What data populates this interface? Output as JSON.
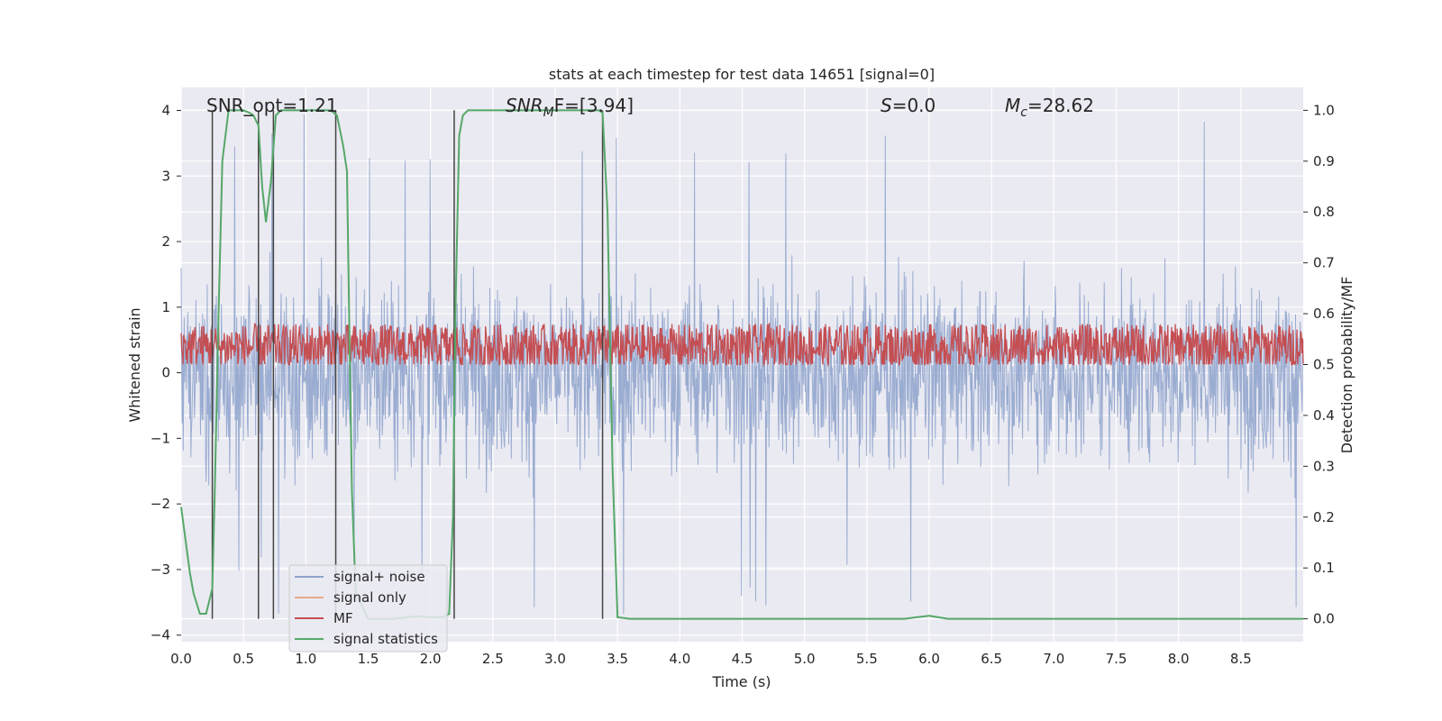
{
  "chart_data": {
    "type": "line",
    "title": "stats at each timestep for test data 14651 [signal=0]",
    "xlabel": "Time (s)",
    "ylabel_left": "Whitened strain",
    "ylabel_right": "Detection probability/MF",
    "xlim": [
      0.0,
      9.0
    ],
    "ylim_left": [
      -4.1,
      4.35
    ],
    "ylim_right": [
      -0.045,
      1.045
    ],
    "x_ticks": [
      0.0,
      0.5,
      1.0,
      1.5,
      2.0,
      2.5,
      3.0,
      3.5,
      4.0,
      4.5,
      5.0,
      5.5,
      6.0,
      6.5,
      7.0,
      7.5,
      8.0,
      8.5
    ],
    "x_tick_labels": [
      "0.0",
      "0.5",
      "1.0",
      "1.5",
      "2.0",
      "2.5",
      "3.0",
      "3.5",
      "4.0",
      "4.5",
      "5.0",
      "5.5",
      "6.0",
      "6.5",
      "7.0",
      "7.5",
      "8.0",
      "8.5"
    ],
    "y_left_ticks": [
      4,
      3,
      2,
      1,
      0,
      -1,
      -2,
      -3,
      -4
    ],
    "y_left_tick_labels": [
      "4",
      "3",
      "2",
      "1",
      "0",
      "−1",
      "−2",
      "−3",
      "−4"
    ],
    "y_right_ticks": [
      1.0,
      0.9,
      0.8,
      0.7,
      0.6,
      0.5,
      0.4,
      0.3,
      0.2,
      0.1,
      0.0
    ],
    "y_right_tick_labels": [
      "1.0",
      "0.9",
      "0.8",
      "0.7",
      "0.6",
      "0.5",
      "0.4",
      "0.3",
      "0.2",
      "0.1",
      "0.0"
    ],
    "annotations": {
      "snr_opt": "SNR_opt=1.21",
      "snr_mf_prefix": "SNR",
      "snr_mf_sub": "M",
      "snr_mf_suffix": "F=[3.94]",
      "s_prefix": "S",
      "s_suffix": "=0.0",
      "mc_prefix": "M",
      "mc_sub": "c",
      "mc_suffix": "=28.62"
    },
    "legend": {
      "placement": "lower-left",
      "entries": [
        {
          "label": "signal+ noise",
          "color": "#8fa3cc"
        },
        {
          "label": "signal only",
          "color": "#e8a88a"
        },
        {
          "label": "MF",
          "color": "#c44e52"
        },
        {
          "label": "signal statistics",
          "color": "#55a868"
        }
      ]
    },
    "series": [
      {
        "name": "signal+ noise",
        "color": "#96a9cf",
        "axis": "left",
        "description": "whitened strain noise band, 0.0-9.0 s",
        "envelope_upper": 2.2,
        "envelope_lower": -2.2,
        "peak_upper": 4.0,
        "peak_lower": -3.7
      },
      {
        "name": "MF",
        "color": "#c44e52",
        "axis": "right",
        "center": 0.535,
        "min": 0.5,
        "max": 0.6
      },
      {
        "name": "signal statistics",
        "color": "#55a868",
        "axis": "right",
        "x": [
          0.0,
          0.07,
          0.1,
          0.15,
          0.2,
          0.25,
          0.27,
          0.3,
          0.33,
          0.38,
          0.42,
          0.5,
          0.55,
          0.58,
          0.62,
          0.65,
          0.68,
          0.72,
          0.76,
          0.8,
          0.9,
          1.0,
          1.1,
          1.2,
          1.25,
          1.3,
          1.33,
          1.35,
          1.37,
          1.4,
          1.5,
          1.7,
          1.9,
          2.0,
          2.1,
          2.15,
          2.18,
          2.2,
          2.23,
          2.26,
          2.3,
          2.5,
          3.0,
          3.35,
          3.38,
          3.42,
          3.46,
          3.5,
          3.6,
          4.0,
          5.0,
          5.8,
          5.9,
          6.0,
          6.05,
          6.15,
          7.0,
          8.0,
          9.0
        ],
        "y": [
          0.22,
          0.09,
          0.05,
          0.01,
          0.01,
          0.06,
          0.25,
          0.6,
          0.9,
          1.0,
          1.0,
          1.0,
          0.995,
          0.99,
          0.97,
          0.85,
          0.78,
          0.86,
          0.99,
          1.0,
          1.0,
          1.0,
          1.0,
          1.0,
          0.99,
          0.93,
          0.88,
          0.55,
          0.25,
          0.05,
          0.0,
          0.0,
          0.005,
          0.003,
          0.003,
          0.01,
          0.2,
          0.6,
          0.95,
          0.99,
          1.0,
          1.0,
          1.0,
          1.0,
          0.995,
          0.8,
          0.3,
          0.003,
          0.0,
          0.0,
          0.0,
          0.0,
          0.003,
          0.006,
          0.004,
          0.0,
          0.0,
          0.0,
          0.0
        ]
      }
    ],
    "markers": {
      "description": "vertical dark-gray lines on right axis from 0.0 to 1.0",
      "x": [
        0.25,
        0.62,
        0.74,
        1.24,
        2.19,
        3.38
      ]
    }
  }
}
